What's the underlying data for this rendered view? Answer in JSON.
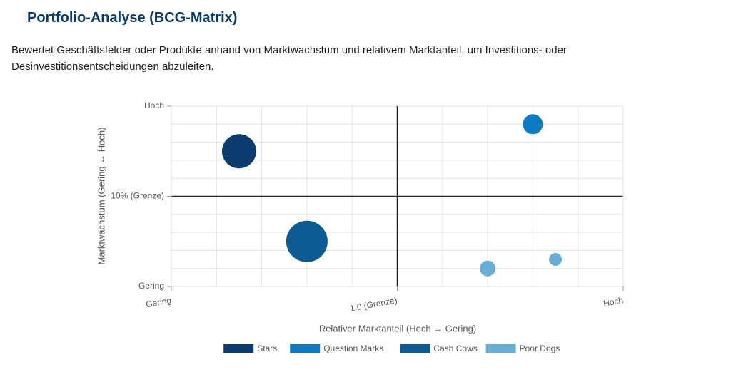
{
  "header": {
    "title": "Portfolio-Analyse (BCG-Matrix)",
    "description": "Bewertet Geschäftsfelder oder Produkte anhand von Marktwachstum und relativem Marktanteil, um Investitions- oder Desinvestitionsentscheidungen abzuleiten."
  },
  "chart_data": {
    "type": "bubble",
    "x_label": "Relativer Marktanteil (Hoch → Gering)",
    "y_label": "Marktwachstum (Gering ↔ Hoch)",
    "xlim": [
      0,
      10
    ],
    "ylim": [
      0,
      10
    ],
    "xticks": [
      {
        "value": 0,
        "label": "Gering"
      },
      {
        "value": 5,
        "label": "1.0 (Grenze)"
      },
      {
        "value": 10,
        "label": "Hoch"
      }
    ],
    "yticks": [
      {
        "value": 0,
        "label": "Gering"
      },
      {
        "value": 5,
        "label": "10% (Grenze)"
      },
      {
        "value": 10,
        "label": "Hoch"
      }
    ],
    "grid": true,
    "legend": "bottom",
    "series": [
      {
        "name": "Stars",
        "color": "#0d3b6e",
        "x": [
          1.5
        ],
        "y": [
          7.5
        ],
        "size": [
          24
        ]
      },
      {
        "name": "Question Marks",
        "color": "#0f7ac4",
        "x": [
          8
        ],
        "y": [
          9
        ],
        "size": [
          14
        ]
      },
      {
        "name": "Cash Cows",
        "color": "#0d5a93",
        "x": [
          3
        ],
        "y": [
          2.5
        ],
        "size": [
          29
        ]
      },
      {
        "name": "Poor Dogs",
        "color": "#6aaed6",
        "x": [
          7,
          8.5
        ],
        "y": [
          1,
          1.5
        ],
        "size": [
          11,
          9
        ]
      }
    ]
  }
}
